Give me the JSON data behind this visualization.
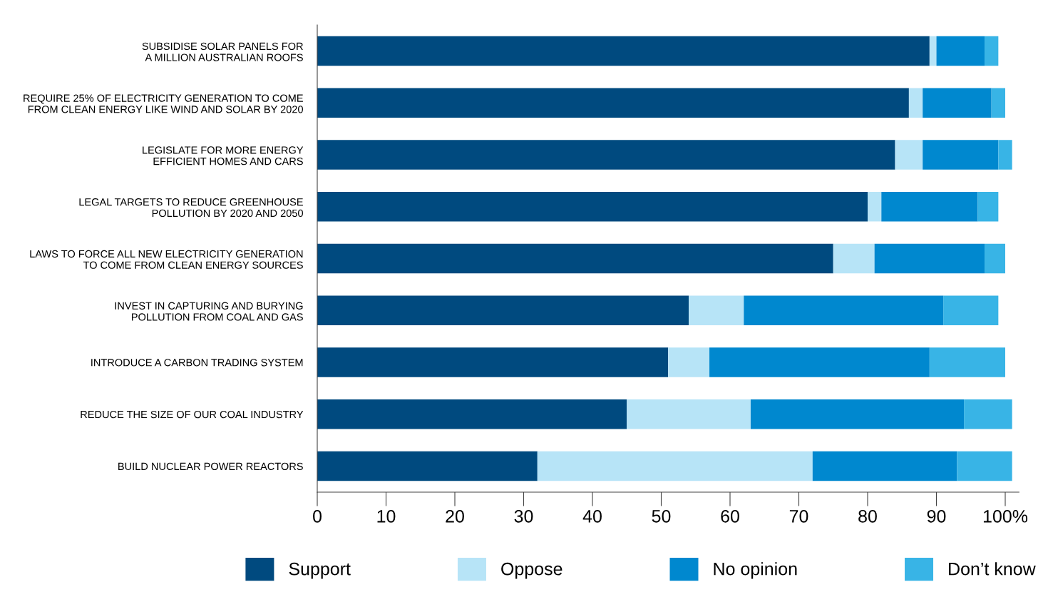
{
  "chart_data": {
    "type": "bar",
    "orientation": "horizontal",
    "stacked": true,
    "categories": [
      "SUBSIDISE SOLAR PANELS FOR\nA MILLION AUSTRALIAN ROOFS",
      "REQUIRE 25% OF ELECTRICITY GENERATION TO COME\nFROM CLEAN ENERGY LIKE WIND AND SOLAR BY 2020",
      "LEGISLATE FOR MORE ENERGY\nEFFICIENT HOMES AND CARS",
      "LEGAL TARGETS TO REDUCE GREENHOUSE\nPOLLUTION BY 2020 AND 2050",
      "LAWS TO FORCE ALL NEW ELECTRICITY GENERATION\nTO COME FROM CLEAN ENERGY SOURCES",
      "INVEST IN CAPTURING AND BURYING\nPOLLUTION FROM COAL AND GAS",
      "INTRODUCE A CARBON TRADING SYSTEM",
      "REDUCE THE SIZE OF OUR COAL INDUSTRY",
      "BUILD NUCLEAR POWER REACTORS"
    ],
    "series": [
      {
        "name": "Support",
        "color": "#004a7f",
        "values": [
          89,
          86,
          84,
          80,
          75,
          54,
          51,
          45,
          32
        ]
      },
      {
        "name": "Oppose",
        "color": "#b7e4f7",
        "values": [
          1,
          2,
          4,
          2,
          6,
          8,
          6,
          18,
          40
        ]
      },
      {
        "name": "No opinion",
        "color": "#0088cf",
        "values": [
          7,
          10,
          11,
          14,
          16,
          29,
          32,
          31,
          21
        ]
      },
      {
        "name": "Don’t know",
        "color": "#38b4e6",
        "values": [
          2,
          2,
          2,
          3,
          3,
          8,
          11,
          7,
          8
        ]
      }
    ],
    "xlim": [
      0,
      102
    ],
    "xticks": [
      0,
      10,
      20,
      30,
      40,
      50,
      60,
      70,
      80,
      90,
      {
        "value": 100,
        "label": "100%"
      }
    ],
    "grid": false,
    "legend": "bottom"
  }
}
